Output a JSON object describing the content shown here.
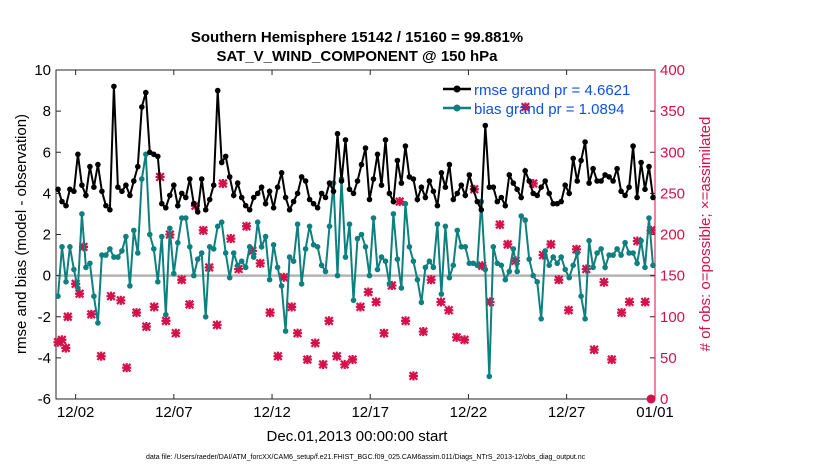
{
  "chart_data": {
    "type": "line",
    "title": "Southern Hemisphere 15142 / 15160 = 99.881%",
    "subtitle": "SAT_V_WIND_COMPONENT @ 150 hPa",
    "xlabel": "Dec.01,2013 00:00:00 start",
    "ylabel": "rmse and bias (model - observation)",
    "ylabel_right": "# of obs: o=possible; ×=assimilated",
    "footnote": "data file: /Users/raeder/DAI/ATM_forcXX/CAM6_setup/f.e21.FHIST_BGC.f09_025.CAM6assim.011/Diags_NTrS_2013-12/obs_diag_output.nc",
    "x_range": [
      0.5,
      31.0
    ],
    "ylim": [
      -6,
      10
    ],
    "ylim_right": [
      0,
      400
    ],
    "xticks": [
      1.5,
      6.5,
      11.5,
      16.5,
      21.5,
      26.5,
      31.0
    ],
    "xtick_labels": [
      "12/02",
      "12/07",
      "12/12",
      "12/17",
      "12/22",
      "12/27",
      "01/01"
    ],
    "yticks": [
      -6,
      -4,
      -2,
      0,
      2,
      4,
      6,
      8,
      10
    ],
    "yticks_right": [
      0,
      50,
      100,
      150,
      200,
      250,
      300,
      350,
      400
    ],
    "grid": false,
    "legend_position": "top-right",
    "series": [
      {
        "name": "rmse grand pr = 4.6621",
        "color": "#000000",
        "marker": "circle",
        "values": [
          4.2,
          3.6,
          3.4,
          4.2,
          4.1,
          5.9,
          4.4,
          3.9,
          5.3,
          4.3,
          5.4,
          4.1,
          3.4,
          3.2,
          9.2,
          4.3,
          4.1,
          4.4,
          3.9,
          4.6,
          5.3,
          8.2,
          8.9,
          6.0,
          5.9,
          5.8,
          3.5,
          3.3,
          3.9,
          4.4,
          3.4,
          4.0,
          3.8,
          4.7,
          3.5,
          3.1,
          4.7,
          3.2,
          3.7,
          4.4,
          9.0,
          5.5,
          5.8,
          4.8,
          3.9,
          4.5,
          3.8,
          3.4,
          3.2,
          3.8,
          4.0,
          4.3,
          3.5,
          4.1,
          3.3,
          4.3,
          5.0,
          3.8,
          3.2,
          3.6,
          4.0,
          4.8,
          4.6,
          3.7,
          3.5,
          3.3,
          4.0,
          3.8,
          4.5,
          4.1,
          6.9,
          4.6,
          6.6,
          4.2,
          4.0,
          4.6,
          5.4,
          6.2,
          3.7,
          4.7,
          5.9,
          4.4,
          6.6,
          4.0,
          3.6,
          5.6,
          4.5,
          6.3,
          4.8,
          4.7,
          3.7,
          4.3,
          3.8,
          4.6,
          4.1,
          3.4,
          5.0,
          4.3,
          5.4,
          3.7,
          4.0,
          4.4,
          3.9,
          4.9,
          4.2,
          3.6,
          3.2,
          7.3,
          4.3,
          4.3,
          3.6,
          3.8,
          3.4,
          4.9,
          4.5,
          4.2,
          3.8,
          5.1,
          4.6,
          4.0,
          3.9,
          4.3,
          4.6,
          4.0,
          3.5,
          3.5,
          3.6,
          4.4,
          4.0,
          5.7,
          4.6,
          5.6,
          6.5,
          4.5,
          5.2,
          4.6,
          4.6,
          4.9,
          4.8,
          4.6,
          5.2,
          4.1,
          3.9,
          4.3,
          6.3,
          3.8,
          5.5,
          4.2,
          5.3,
          3.8
        ]
      },
      {
        "name": "bias grand pr = 1.0894",
        "color": "#0f7f7f",
        "marker": "circle",
        "values": [
          -1.0,
          1.4,
          -0.3,
          1.4,
          0.3,
          -0.6,
          3.0,
          0.4,
          0.6,
          -1.0,
          -2.3,
          1.0,
          1.0,
          1.3,
          0.9,
          0.9,
          1.2,
          1.9,
          -0.5,
          2.2,
          1.1,
          4.7,
          5.9,
          2.0,
          1.3,
          -0.3,
          1.9,
          -1.9,
          2.3,
          0.1,
          1.6,
          2.8,
          2.8,
          1.4,
          0.0,
          0.8,
          1.1,
          -2.0,
          1.4,
          1.3,
          2.4,
          2.6,
          1.1,
          -0.1,
          1.1,
          0.5,
          0.7,
          0.4,
          1.4,
          0.9,
          2.6,
          1.4,
          1.9,
          -0.2,
          1.5,
          0.4,
          -0.5,
          -2.7,
          0.9,
          0.7,
          2.5,
          -0.4,
          1.3,
          2.4,
          1.5,
          1.4,
          0.5,
          0.2,
          2.4,
          4.5,
          0.0,
          4.7,
          0.9,
          2.5,
          -1.2,
          1.8,
          2.0,
          1.4,
          0.0,
          2.8,
          0.3,
          0.9,
          0.7,
          -0.4,
          3.0,
          0.8,
          -0.6,
          3.5,
          1.4,
          0.7,
          -0.2,
          -1.3,
          0.4,
          0.7,
          0.4,
          2.5,
          -0.9,
          2.4,
          -0.1,
          0.5,
          2.2,
          1.4,
          1.4,
          0.6,
          0.6,
          0.5,
          3.6,
          0.3,
          -4.9,
          1.4,
          0.6,
          0.5,
          -0.2,
          0.2,
          1.3,
          0.2,
          2.9,
          2.7,
          0.8,
          0.0,
          -0.3,
          -2.1,
          1.2,
          0.5,
          0.9,
          0.6,
          0.9,
          0.3,
          -0.1,
          0.5,
          1.1,
          -1.0,
          -2.1,
          1.7,
          0.4,
          1.1,
          1.3,
          0.4,
          1.0,
          1.0,
          1.3,
          1.0,
          1.6,
          1.1,
          1.1,
          0.6,
          1.7,
          0.4,
          2.8,
          0.5
        ]
      },
      {
        "name": "obs assimilated",
        "color": "#d4114a",
        "marker": "x",
        "axis": "right",
        "x": [
          0.6,
          0.8,
          1.0,
          1.1,
          1.5,
          1.7,
          1.9,
          2.3,
          2.8,
          3.3,
          3.8,
          4.1,
          4.6,
          5.1,
          5.5,
          5.8,
          6.1,
          6.3,
          6.6,
          6.9,
          7.3,
          7.6,
          8.0,
          8.3,
          8.7,
          9.0,
          9.4,
          9.8,
          10.2,
          10.5,
          10.9,
          11.4,
          11.8,
          12.1,
          12.5,
          12.8,
          13.3,
          13.7,
          14.1,
          14.4,
          14.8,
          15.2,
          15.6,
          16.0,
          16.4,
          16.8,
          17.2,
          17.6,
          18.0,
          18.3,
          18.7,
          19.2,
          19.6,
          20.1,
          20.5,
          20.9,
          21.3,
          21.8,
          22.2,
          22.6,
          23.1,
          23.5,
          23.9,
          24.4,
          24.8,
          25.3,
          25.7,
          26.1,
          26.6,
          27.0,
          27.5,
          27.9,
          28.4,
          28.8,
          29.3,
          29.7,
          30.1,
          30.5,
          30.8
        ],
        "values": [
          69,
          72,
          62,
          100,
          140,
          128,
          185,
          103,
          52,
          125,
          120,
          38,
          105,
          88,
          112,
          270,
          95,
          200,
          80,
          145,
          115,
          235,
          205,
          160,
          90,
          262,
          195,
          158,
          210,
          180,
          165,
          105,
          52,
          148,
          112,
          80,
          48,
          68,
          42,
          95,
          52,
          42,
          48,
          112,
          130,
          118,
          80,
          138,
          240,
          95,
          28,
          82,
          145,
          118,
          108,
          75,
          72,
          255,
          162,
          118,
          212,
          188,
          168,
          355,
          262,
          175,
          188,
          145,
          108,
          182,
          158,
          60,
          142,
          48,
          105,
          118,
          192,
          118,
          205
        ]
      },
      {
        "name": "obs possible",
        "color": "#d4114a",
        "marker": "o",
        "axis": "right",
        "x": [
          30.8
        ],
        "values": [
          0
        ]
      }
    ]
  }
}
